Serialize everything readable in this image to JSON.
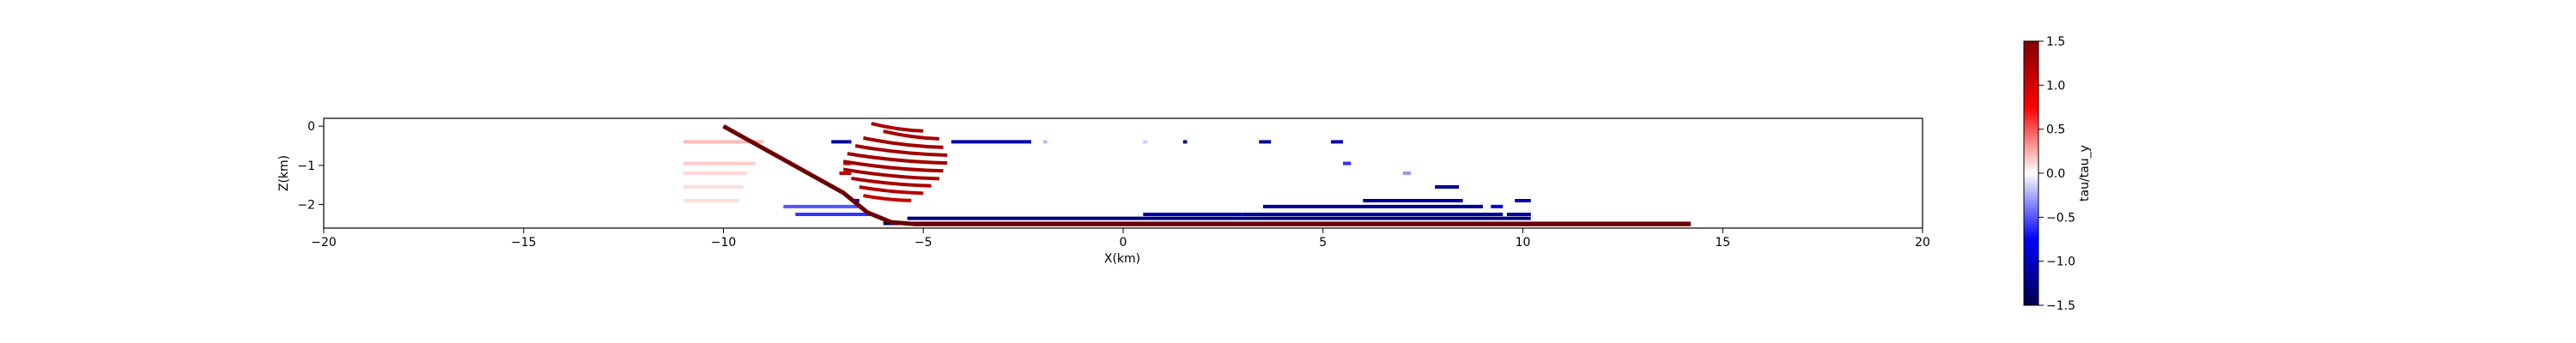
{
  "chart_data": {
    "type": "scatter",
    "xlabel": "X(km)",
    "ylabel": "Z(km)",
    "xlim": [
      -20,
      20
    ],
    "ylim": [
      -2.6,
      0.2
    ],
    "x_ticks": [
      "−20",
      "−15",
      "−10",
      "−5",
      "0",
      "5",
      "10",
      "15",
      "20"
    ],
    "y_ticks": [
      "0",
      "−1",
      "−2"
    ],
    "colormap": "seismic",
    "colorbar": {
      "label": "tau/tau_y",
      "range": [
        -1.5,
        1.5
      ],
      "ticks": [
        "1.5",
        "1.0",
        "0.5",
        "0.0",
        "−0.5",
        "−1.0",
        "−1.5"
      ]
    },
    "fault": {
      "color": "#6b0000",
      "points": [
        [
          -10.0,
          0.0
        ],
        [
          -7.0,
          -1.7
        ],
        [
          -6.4,
          -2.2
        ],
        [
          -5.8,
          -2.45
        ],
        [
          -5.2,
          -2.5
        ],
        [
          14.2,
          -2.5
        ]
      ]
    },
    "rows": [
      {
        "z": -0.4,
        "segments": [
          [
            -11.0,
            -9.0,
            0.2
          ],
          [
            -7.3,
            -6.8,
            -1.2
          ],
          [
            -4.3,
            -2.3,
            -1.1
          ],
          [
            -2.0,
            -1.9,
            -0.2
          ],
          [
            0.5,
            0.6,
            -0.15
          ],
          [
            1.5,
            1.6,
            -1.3
          ],
          [
            3.4,
            3.7,
            -1.2
          ],
          [
            5.2,
            5.5,
            -1.1
          ]
        ]
      },
      {
        "z": -0.95,
        "segments": [
          [
            -11.0,
            -9.2,
            0.15
          ],
          [
            -7.0,
            -6.8,
            1.1
          ],
          [
            5.5,
            5.7,
            -0.6
          ]
        ]
      },
      {
        "z": -1.2,
        "segments": [
          [
            -11.0,
            -9.4,
            0.12
          ],
          [
            -7.1,
            -6.8,
            1.1
          ],
          [
            7.0,
            7.2,
            -0.3
          ]
        ]
      },
      {
        "z": -1.55,
        "segments": [
          [
            -11.0,
            -9.5,
            0.1
          ],
          [
            7.8,
            8.4,
            -1.2
          ]
        ]
      },
      {
        "z": -1.9,
        "segments": [
          [
            -11.0,
            -9.6,
            0.1
          ],
          [
            -6.8,
            -6.6,
            -1.0
          ],
          [
            6.0,
            8.5,
            -1.2
          ],
          [
            9.8,
            10.2,
            -1.1
          ]
        ]
      },
      {
        "z": -2.05,
        "segments": [
          [
            -8.5,
            -6.6,
            -0.5
          ],
          [
            3.5,
            9.0,
            -1.2
          ],
          [
            9.2,
            9.5,
            -0.9
          ]
        ]
      },
      {
        "z": -2.25,
        "segments": [
          [
            -8.2,
            -6.3,
            -0.6
          ],
          [
            0.5,
            3.0,
            -1.1
          ],
          [
            3.0,
            9.5,
            -1.2
          ],
          [
            9.6,
            10.2,
            -1.2
          ]
        ]
      },
      {
        "z": -2.35,
        "segments": [
          [
            -5.4,
            10.2,
            -1.3
          ]
        ]
      },
      {
        "z": -2.48,
        "segments": [
          [
            -6.0,
            14.2,
            -1.45
          ]
        ]
      }
    ],
    "arcs": [
      {
        "x1": -6.3,
        "x2": -5.0,
        "peak": 0.12,
        "y0": -0.05,
        "value": 1.25
      },
      {
        "x1": -6.0,
        "x2": -4.6,
        "peak": 0.12,
        "y0": -0.25,
        "value": 1.25
      },
      {
        "x1": -6.5,
        "x2": -4.5,
        "peak": 0.15,
        "y0": -0.45,
        "value": 1.3
      },
      {
        "x1": -6.7,
        "x2": -4.4,
        "peak": 0.15,
        "y0": -0.65,
        "value": 1.3
      },
      {
        "x1": -6.9,
        "x2": -4.4,
        "peak": 0.15,
        "y0": -0.85,
        "value": 1.3
      },
      {
        "x1": -7.0,
        "x2": -4.5,
        "peak": 0.15,
        "y0": -1.05,
        "value": 1.3
      },
      {
        "x1": -7.0,
        "x2": -4.6,
        "peak": 0.15,
        "y0": -1.25,
        "value": 1.3
      },
      {
        "x1": -6.8,
        "x2": -4.8,
        "peak": 0.12,
        "y0": -1.45,
        "value": 1.25
      },
      {
        "x1": -6.6,
        "x2": -5.0,
        "peak": 0.1,
        "y0": -1.65,
        "value": 1.2
      },
      {
        "x1": -6.5,
        "x2": -5.3,
        "peak": 0.08,
        "y0": -1.85,
        "value": 1.1
      }
    ]
  }
}
